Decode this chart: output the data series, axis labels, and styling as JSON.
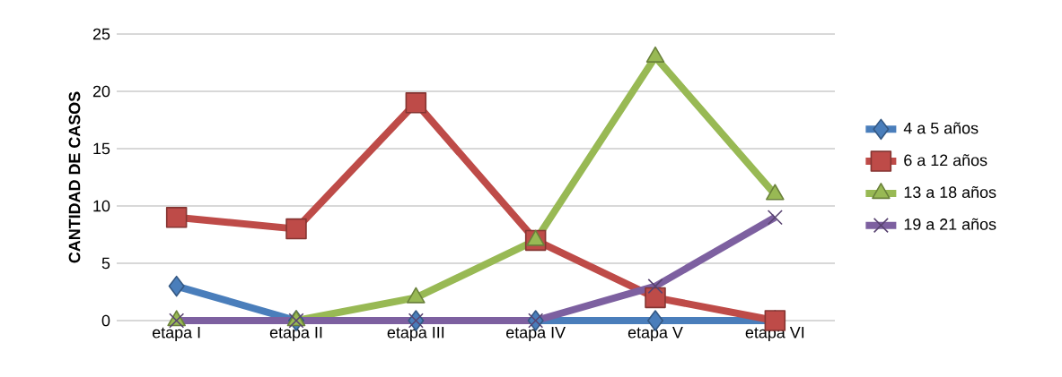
{
  "chart_data": {
    "type": "line",
    "ylabel": "CANTIDAD DE CASOS",
    "categories": [
      "etapa I",
      "etapa II",
      "etapa  III",
      "etapa  IV",
      "etapa  V",
      "etapa  VI"
    ],
    "series": [
      {
        "name": "4 a 5 años",
        "color": "#4a7ebb",
        "marker": "diamond",
        "values": [
          3,
          0,
          0,
          0,
          0,
          0
        ]
      },
      {
        "name": "6 a 12 años",
        "color": "#be4b48",
        "marker": "square",
        "values": [
          9,
          8,
          19,
          7,
          2,
          0
        ]
      },
      {
        "name": "13 a 18 años",
        "color": "#98b954",
        "marker": "triangle",
        "values": [
          0,
          0,
          2,
          7,
          23,
          11
        ]
      },
      {
        "name": "19 a 21 años",
        "color": "#7d60a0",
        "marker": "cross",
        "values": [
          0,
          0,
          0,
          0,
          3,
          9
        ]
      }
    ],
    "ylim": [
      0,
      25
    ],
    "yticks": [
      0,
      5,
      10,
      15,
      20,
      25
    ],
    "grid": "y",
    "legend": "right"
  }
}
